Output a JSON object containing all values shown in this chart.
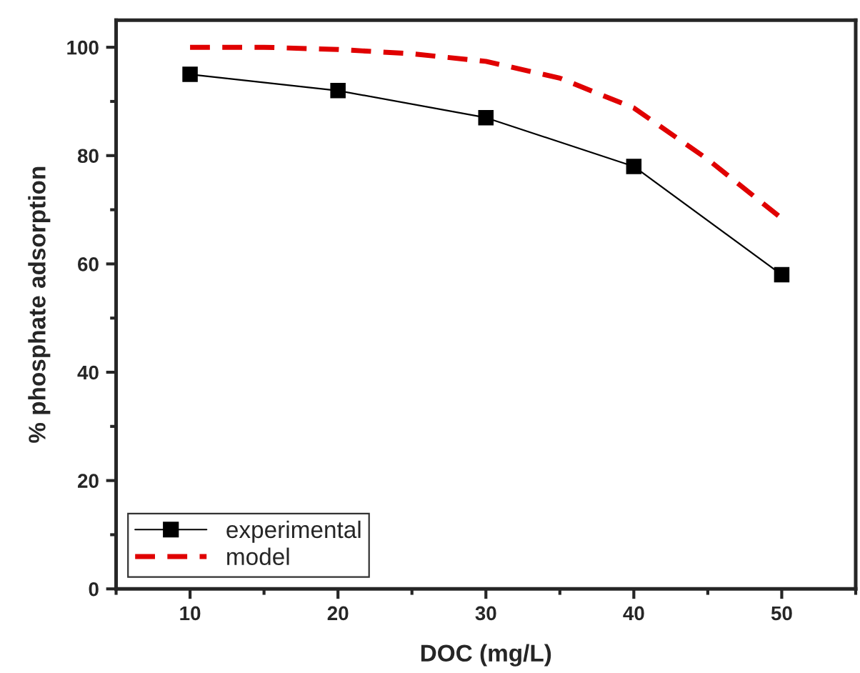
{
  "chart_data": {
    "type": "line",
    "xlabel": "DOC (mg/L)",
    "ylabel": "% phosphate adsorption",
    "x": [
      10,
      20,
      30,
      40,
      50
    ],
    "series": [
      {
        "name": "experimental",
        "color": "#000000",
        "marker": "square",
        "line_style": "solid",
        "values": [
          95,
          92,
          87,
          78,
          58
        ]
      },
      {
        "name": "model",
        "color": "#e00000",
        "marker": "none",
        "line_style": "dashed",
        "x": [
          10,
          15,
          20,
          25,
          30,
          35,
          40,
          45,
          50
        ],
        "values": [
          100,
          100,
          99.6,
          98.8,
          97.4,
          94.3,
          88.8,
          79.3,
          68.4
        ]
      }
    ],
    "xlim": [
      5,
      55
    ],
    "ylim": [
      0,
      105
    ],
    "xticks": [
      10,
      20,
      30,
      40,
      50
    ],
    "yticks": [
      0,
      20,
      40,
      60,
      80,
      100
    ],
    "grid": false,
    "legend": "bottom left"
  }
}
